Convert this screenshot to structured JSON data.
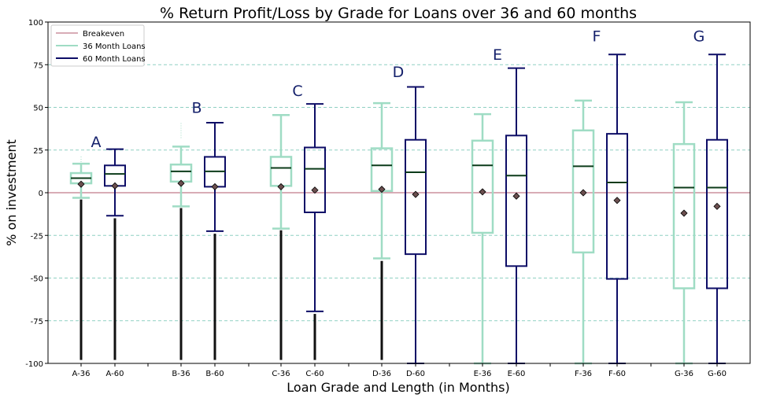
{
  "chart_data": {
    "type": "box",
    "title": "% Return Profit/Loss by Grade for Loans over 36 and 60 months",
    "xlabel": "Loan Grade and Length (in Months)",
    "ylabel": "% on investment",
    "ylim": [
      -100,
      100
    ],
    "yticks": [
      100,
      75,
      50,
      25,
      0,
      -25,
      -50,
      -75,
      -100
    ],
    "grid": "horizontal dashed",
    "legend_position": "top-left",
    "breakeven": 0,
    "colors": {
      "breakeven": "#b05a6e",
      "m36": "#9fdcc4",
      "m60": "#0d0d66",
      "median": "#0c3b1a",
      "mean_marker": "#6b4f4f",
      "outliers": "#111111",
      "grid": "#8fd0c2",
      "grade_label": "#14206b"
    },
    "legend": [
      {
        "label": "Breakeven",
        "key": "breakeven"
      },
      {
        "label": "36 Month Loans",
        "key": "m36"
      },
      {
        "label": "60 Month Loans",
        "key": "m60"
      }
    ],
    "grades": [
      {
        "grade": "A",
        "grade_label_value": 30,
        "boxes": [
          {
            "label": "A-36",
            "term": "m36",
            "whisker_low": -3,
            "q1": 5.5,
            "median": 8.5,
            "q3": 11.5,
            "whisker_high": 17,
            "mean": 5,
            "outliers_low": [
              -4,
              -98
            ],
            "outliers_high": [
              18,
              21.5
            ]
          },
          {
            "label": "A-60",
            "term": "m60",
            "whisker_low": -13.5,
            "q1": 4,
            "median": 11,
            "q3": 16,
            "whisker_high": 25.5,
            "mean": 4,
            "outliers_low": [
              -15,
              -98
            ],
            "outliers_high": []
          }
        ]
      },
      {
        "grade": "B",
        "grade_label_value": 50,
        "boxes": [
          {
            "label": "B-36",
            "term": "m36",
            "whisker_low": -8,
            "q1": 6.5,
            "median": 12.5,
            "q3": 16.5,
            "whisker_high": 27,
            "mean": 5.5,
            "outliers_low": [
              -9,
              -98
            ],
            "outliers_high": [
              32,
              41
            ]
          },
          {
            "label": "B-60",
            "term": "m60",
            "whisker_low": -22.5,
            "q1": 3.5,
            "median": 12.5,
            "q3": 21,
            "whisker_high": 41,
            "mean": 3.5,
            "outliers_low": [
              -24,
              -98
            ],
            "outliers_high": []
          }
        ]
      },
      {
        "grade": "C",
        "grade_label_value": 60,
        "boxes": [
          {
            "label": "C-36",
            "term": "m36",
            "whisker_low": -21,
            "q1": 4,
            "median": 14.5,
            "q3": 21,
            "whisker_high": 45.5,
            "mean": 3.5,
            "outliers_low": [
              -22,
              -98
            ],
            "outliers_high": []
          },
          {
            "label": "C-60",
            "term": "m60",
            "whisker_low": -69.5,
            "q1": -11.5,
            "median": 14,
            "q3": 26.5,
            "whisker_high": 52,
            "mean": 1.5,
            "outliers_low": [
              -71,
              -98
            ],
            "outliers_high": []
          }
        ]
      },
      {
        "grade": "D",
        "grade_label_value": 71,
        "boxes": [
          {
            "label": "D-36",
            "term": "m36",
            "whisker_low": -38.5,
            "q1": 1,
            "median": 16,
            "q3": 26,
            "whisker_high": 52.5,
            "mean": 2,
            "outliers_low": [
              -40,
              -98
            ],
            "outliers_high": []
          },
          {
            "label": "D-60",
            "term": "m60",
            "whisker_low": -100,
            "q1": -36,
            "median": 12,
            "q3": 31,
            "whisker_high": 62,
            "mean": -1,
            "outliers_low": [],
            "outliers_high": []
          }
        ]
      },
      {
        "grade": "E",
        "grade_label_value": 81,
        "boxes": [
          {
            "label": "E-36",
            "term": "m36",
            "whisker_low": -100,
            "q1": -23.5,
            "median": 16,
            "q3": 30.5,
            "whisker_high": 46,
            "mean": 0.5,
            "outliers_low": [],
            "outliers_high": []
          },
          {
            "label": "E-60",
            "term": "m60",
            "whisker_low": -100,
            "q1": -43,
            "median": 10,
            "q3": 33.5,
            "whisker_high": 73,
            "mean": -2,
            "outliers_low": [],
            "outliers_high": []
          }
        ]
      },
      {
        "grade": "F",
        "grade_label_value": 92,
        "boxes": [
          {
            "label": "F-36",
            "term": "m36",
            "whisker_low": -100,
            "q1": -35,
            "median": 15.5,
            "q3": 36.5,
            "whisker_high": 54,
            "mean": 0,
            "outliers_low": [],
            "outliers_high": []
          },
          {
            "label": "F-60",
            "term": "m60",
            "whisker_low": -100,
            "q1": -50.5,
            "median": 6,
            "q3": 34.5,
            "whisker_high": 81,
            "mean": -4.5,
            "outliers_low": [],
            "outliers_high": []
          }
        ]
      },
      {
        "grade": "G",
        "grade_label_value": 92,
        "boxes": [
          {
            "label": "G-36",
            "term": "m36",
            "whisker_low": -100,
            "q1": -56,
            "median": 3,
            "q3": 28.5,
            "whisker_high": 53,
            "mean": -12,
            "outliers_low": [],
            "outliers_high": []
          },
          {
            "label": "G-60",
            "term": "m60",
            "whisker_low": -100,
            "q1": -56,
            "median": 3,
            "q3": 31,
            "whisker_high": 81,
            "mean": -8,
            "outliers_low": [],
            "outliers_high": []
          }
        ]
      }
    ]
  }
}
